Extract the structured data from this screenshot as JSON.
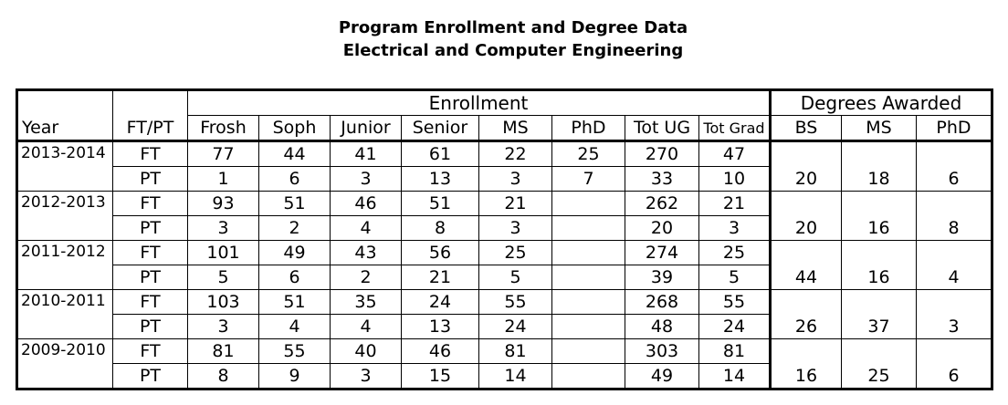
{
  "title": {
    "line1": "Program Enrollment and Degree Data",
    "line2": "Electrical and Computer Engineering"
  },
  "header": {
    "enrollment_group": "Enrollment",
    "degrees_group": "Degrees Awarded",
    "year": "Year",
    "ftpt": "FT/PT",
    "columns": [
      "Frosh",
      "Soph",
      "Junior",
      "Senior",
      "MS",
      "PhD",
      "Tot UG",
      "Tot Grad"
    ],
    "degree_columns": [
      "BS",
      "MS",
      "PhD"
    ]
  },
  "years": [
    {
      "label": "2013-2014",
      "ft": {
        "status": "FT",
        "values": [
          "77",
          "44",
          "41",
          "61",
          "22",
          "25",
          "270",
          "47"
        ]
      },
      "pt": {
        "status": "PT",
        "values": [
          "1",
          "6",
          "3",
          "13",
          "3",
          "7",
          "33",
          "10"
        ]
      },
      "degrees": [
        "20",
        "18",
        "6"
      ]
    },
    {
      "label": "2012-2013",
      "ft": {
        "status": "FT",
        "values": [
          "93",
          "51",
          "46",
          "51",
          "21",
          "",
          "262",
          "21"
        ]
      },
      "pt": {
        "status": "PT",
        "values": [
          "3",
          "2",
          "4",
          "8",
          "3",
          "",
          "20",
          "3"
        ]
      },
      "degrees": [
        "20",
        "16",
        "8"
      ]
    },
    {
      "label": "2011-2012",
      "ft": {
        "status": "FT",
        "values": [
          "101",
          "49",
          "43",
          "56",
          "25",
          "",
          "274",
          "25"
        ]
      },
      "pt": {
        "status": "PT",
        "values": [
          "5",
          "6",
          "2",
          "21",
          "5",
          "",
          "39",
          "5"
        ]
      },
      "degrees": [
        "44",
        "16",
        "4"
      ]
    },
    {
      "label": "2010-2011",
      "ft": {
        "status": "FT",
        "values": [
          "103",
          "51",
          "35",
          "24",
          "55",
          "",
          "268",
          "55"
        ]
      },
      "pt": {
        "status": "PT",
        "values": [
          "3",
          "4",
          "4",
          "13",
          "24",
          "",
          "48",
          "24"
        ]
      },
      "degrees": [
        "26",
        "37",
        "3"
      ]
    },
    {
      "label": "2009-2010",
      "ft": {
        "status": "FT",
        "values": [
          "81",
          "55",
          "40",
          "46",
          "81",
          "",
          "303",
          "81"
        ]
      },
      "pt": {
        "status": "PT",
        "values": [
          "8",
          "9",
          "3",
          "15",
          "14",
          "",
          "49",
          "14"
        ]
      },
      "degrees": [
        "16",
        "25",
        "6"
      ]
    }
  ]
}
